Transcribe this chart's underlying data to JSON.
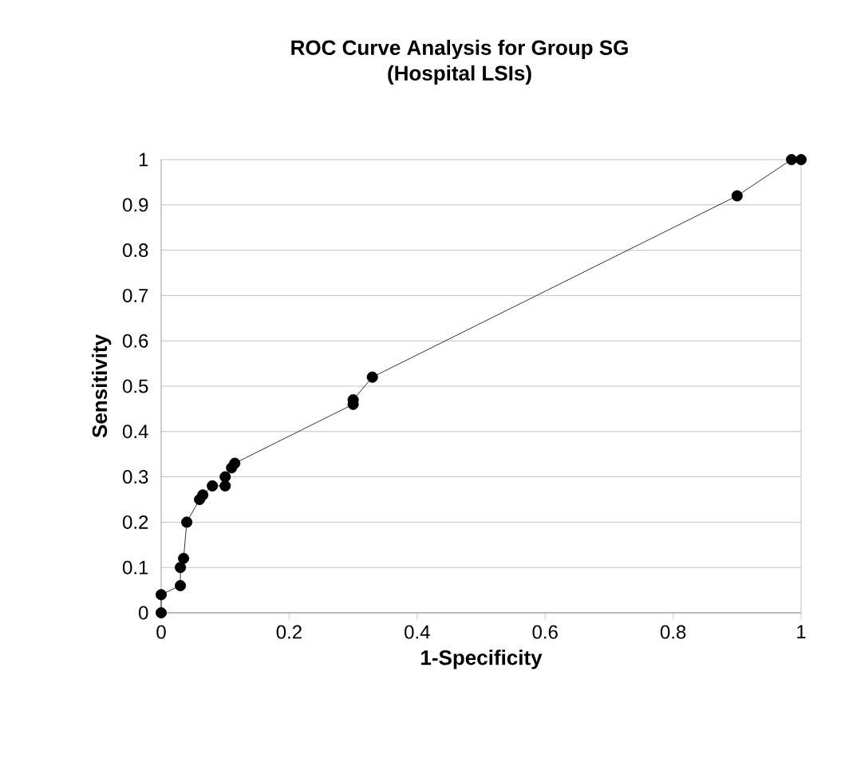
{
  "chart_data": {
    "type": "line",
    "title": "ROC Curve Analysis for Group SG",
    "subtitle": "(Hospital LSIs)",
    "xlabel": "1-Specificity",
    "ylabel": "Sensitivity",
    "x": [
      0,
      0,
      0.03,
      0.03,
      0.035,
      0.04,
      0.06,
      0.065,
      0.08,
      0.1,
      0.1,
      0.11,
      0.115,
      0.3,
      0.3,
      0.33,
      0.9,
      0.985,
      1
    ],
    "series": [
      {
        "color": "#000000",
        "values": [
          0,
          0.04,
          0.06,
          0.1,
          0.12,
          0.2,
          0.25,
          0.26,
          0.28,
          0.28,
          0.3,
          0.32,
          0.33,
          0.46,
          0.47,
          0.52,
          0.92,
          1,
          1
        ]
      }
    ],
    "xlim": [
      0,
      1
    ],
    "ylim": [
      0,
      1
    ],
    "xticks": [
      0,
      0.2,
      0.4,
      0.6,
      0.8,
      1
    ],
    "yticks": [
      0,
      0.1,
      0.2,
      0.3,
      0.4,
      0.5,
      0.6,
      0.7,
      0.8,
      0.9,
      1
    ],
    "grid": "y",
    "marker": "circle",
    "line_style": "solid"
  }
}
